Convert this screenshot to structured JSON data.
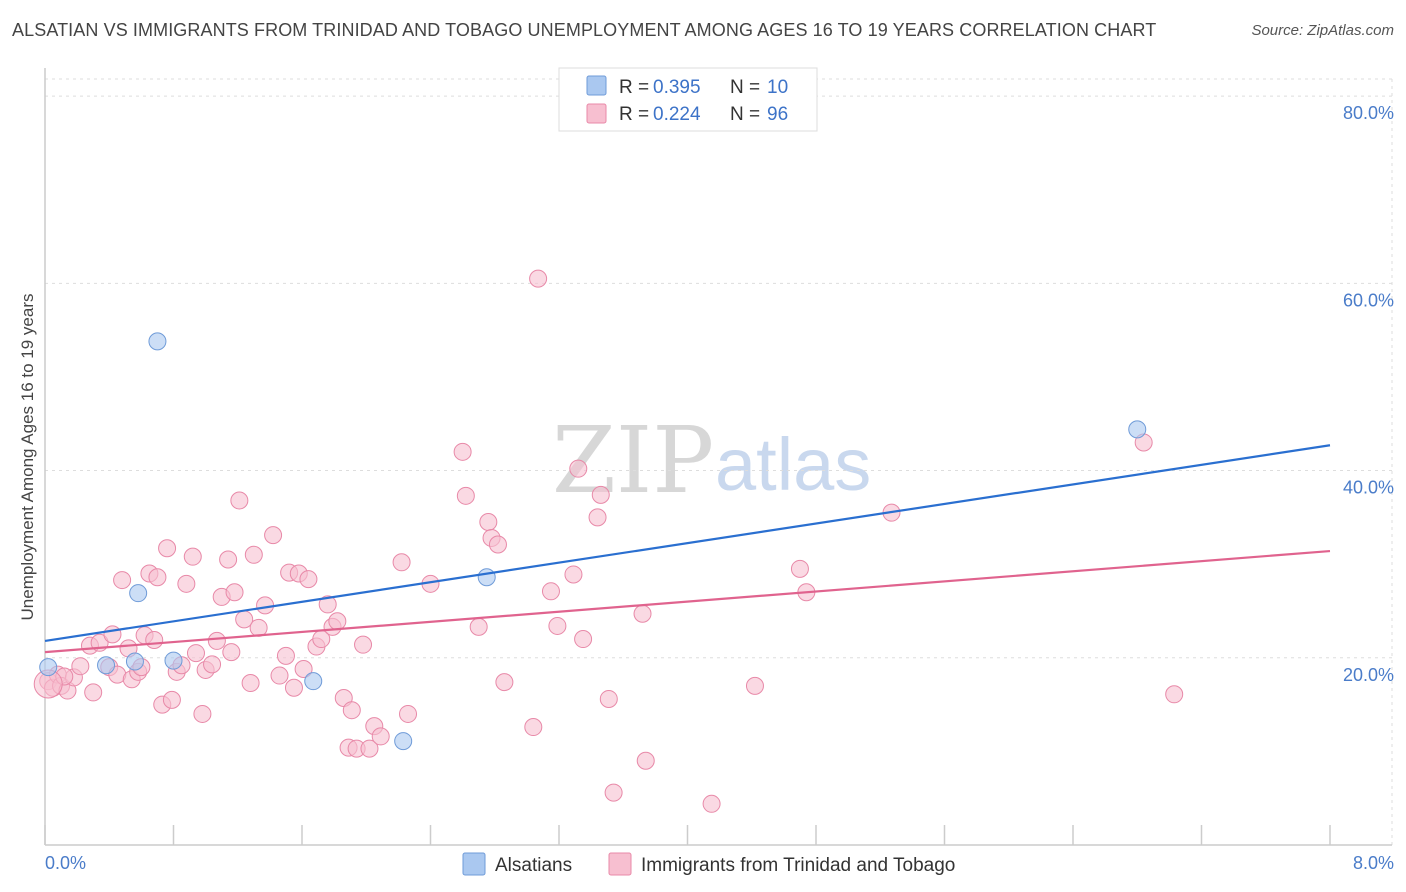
{
  "header": {
    "title": "ALSATIAN VS IMMIGRANTS FROM TRINIDAD AND TOBAGO UNEMPLOYMENT AMONG AGES 16 TO 19 YEARS CORRELATION CHART",
    "source": "Source: ZipAtlas.com"
  },
  "watermark": {
    "zip": "ZIP",
    "atlas": "atlas"
  },
  "legend": {
    "rows": [
      {
        "r_label": "R = ",
        "r_value": "0.395",
        "n_label": "N = ",
        "n_value": "10"
      },
      {
        "r_label": "R = ",
        "r_value": "0.224",
        "n_label": "N = ",
        "n_value": "96"
      }
    ]
  },
  "colors": {
    "blue_fill": "#aac8f0",
    "blue_stroke": "#6f9bd8",
    "blue_line": "#2a6fd0",
    "pink_fill": "#f7bfd0",
    "pink_stroke": "#e889a8",
    "pink_line": "#e0638e",
    "grid": "#dddddd",
    "axis_tick": "#4a7cc9"
  },
  "chart_data": {
    "type": "scatter",
    "title": "ALSATIAN VS IMMIGRANTS FROM TRINIDAD AND TOBAGO UNEMPLOYMENT AMONG AGES 16 TO 19 YEARS CORRELATION CHART",
    "xlabel": "",
    "ylabel": "Unemployment Among Ages 16 to 19 years",
    "xlim": [
      0,
      8
    ],
    "ylim": [
      0,
      83
    ],
    "x_tick_labels": [
      {
        "value": 0,
        "label": "0.0%"
      },
      {
        "value": 8,
        "label": "8.0%"
      }
    ],
    "y_tick_labels": [
      {
        "value": 20,
        "label": "20.0%"
      },
      {
        "value": 40,
        "label": "40.0%"
      },
      {
        "value": 60,
        "label": "60.0%"
      },
      {
        "value": 80,
        "label": "80.0%"
      }
    ],
    "grid": "horizontal dashed",
    "legend_position": "top-center",
    "series": [
      {
        "name": "Alsatians",
        "color": "#aac8f0",
        "trend": {
          "x": [
            0,
            8
          ],
          "y": [
            21.8,
            42.7
          ]
        },
        "points": [
          {
            "x": 0.02,
            "y": 19.0
          },
          {
            "x": 0.38,
            "y": 19.2
          },
          {
            "x": 0.56,
            "y": 19.6
          },
          {
            "x": 0.58,
            "y": 26.9
          },
          {
            "x": 0.7,
            "y": 53.8
          },
          {
            "x": 0.8,
            "y": 19.7
          },
          {
            "x": 1.67,
            "y": 17.5
          },
          {
            "x": 2.23,
            "y": 11.1
          },
          {
            "x": 2.75,
            "y": 28.6
          },
          {
            "x": 6.8,
            "y": 44.4
          }
        ]
      },
      {
        "name": "Immigrants from Trinidad and Tobago",
        "color": "#f7bfd0",
        "trend": {
          "x": [
            0,
            8
          ],
          "y": [
            20.6,
            31.4
          ]
        },
        "points": [
          {
            "x": 0.02,
            "y": 17.5
          },
          {
            "x": 0.05,
            "y": 16.8
          },
          {
            "x": 0.08,
            "y": 18.2
          },
          {
            "x": 0.1,
            "y": 17.0
          },
          {
            "x": 0.14,
            "y": 16.5
          },
          {
            "x": 0.18,
            "y": 17.9
          },
          {
            "x": 0.22,
            "y": 19.1
          },
          {
            "x": 0.28,
            "y": 21.3
          },
          {
            "x": 0.3,
            "y": 16.3
          },
          {
            "x": 0.34,
            "y": 21.6
          },
          {
            "x": 0.4,
            "y": 19.0
          },
          {
            "x": 0.42,
            "y": 22.5
          },
          {
            "x": 0.45,
            "y": 18.2
          },
          {
            "x": 0.48,
            "y": 28.3
          },
          {
            "x": 0.52,
            "y": 21.0
          },
          {
            "x": 0.54,
            "y": 17.7
          },
          {
            "x": 0.58,
            "y": 18.5
          },
          {
            "x": 0.6,
            "y": 19.0
          },
          {
            "x": 0.62,
            "y": 22.4
          },
          {
            "x": 0.65,
            "y": 29.0
          },
          {
            "x": 0.68,
            "y": 21.9
          },
          {
            "x": 0.7,
            "y": 28.6
          },
          {
            "x": 0.73,
            "y": 15.0
          },
          {
            "x": 0.76,
            "y": 31.7
          },
          {
            "x": 0.79,
            "y": 15.5
          },
          {
            "x": 0.82,
            "y": 18.5
          },
          {
            "x": 0.85,
            "y": 19.2
          },
          {
            "x": 0.88,
            "y": 27.9
          },
          {
            "x": 0.92,
            "y": 30.8
          },
          {
            "x": 0.94,
            "y": 20.5
          },
          {
            "x": 0.98,
            "y": 14.0
          },
          {
            "x": 1.0,
            "y": 18.7
          },
          {
            "x": 1.04,
            "y": 19.3
          },
          {
            "x": 1.07,
            "y": 21.8
          },
          {
            "x": 1.1,
            "y": 26.5
          },
          {
            "x": 1.14,
            "y": 30.5
          },
          {
            "x": 1.16,
            "y": 20.6
          },
          {
            "x": 1.18,
            "y": 27.0
          },
          {
            "x": 1.21,
            "y": 36.8
          },
          {
            "x": 1.24,
            "y": 24.1
          },
          {
            "x": 1.28,
            "y": 17.3
          },
          {
            "x": 1.3,
            "y": 31.0
          },
          {
            "x": 1.33,
            "y": 23.2
          },
          {
            "x": 1.37,
            "y": 25.6
          },
          {
            "x": 1.42,
            "y": 33.1
          },
          {
            "x": 1.46,
            "y": 18.1
          },
          {
            "x": 1.5,
            "y": 20.2
          },
          {
            "x": 1.52,
            "y": 29.1
          },
          {
            "x": 1.55,
            "y": 16.8
          },
          {
            "x": 1.58,
            "y": 29.0
          },
          {
            "x": 1.61,
            "y": 18.8
          },
          {
            "x": 1.64,
            "y": 28.4
          },
          {
            "x": 1.69,
            "y": 21.2
          },
          {
            "x": 1.72,
            "y": 22.0
          },
          {
            "x": 1.76,
            "y": 25.7
          },
          {
            "x": 1.79,
            "y": 23.3
          },
          {
            "x": 1.82,
            "y": 23.9
          },
          {
            "x": 1.86,
            "y": 15.7
          },
          {
            "x": 1.89,
            "y": 10.4
          },
          {
            "x": 1.91,
            "y": 14.4
          },
          {
            "x": 1.94,
            "y": 10.3
          },
          {
            "x": 1.98,
            "y": 21.4
          },
          {
            "x": 2.02,
            "y": 10.3
          },
          {
            "x": 2.05,
            "y": 12.7
          },
          {
            "x": 2.09,
            "y": 11.6
          },
          {
            "x": 2.22,
            "y": 30.2
          },
          {
            "x": 2.26,
            "y": 14.0
          },
          {
            "x": 2.4,
            "y": 27.9
          },
          {
            "x": 2.6,
            "y": 42.0
          },
          {
            "x": 2.62,
            "y": 37.3
          },
          {
            "x": 2.7,
            "y": 23.3
          },
          {
            "x": 2.76,
            "y": 34.5
          },
          {
            "x": 2.78,
            "y": 32.8
          },
          {
            "x": 2.82,
            "y": 32.1
          },
          {
            "x": 2.86,
            "y": 17.4
          },
          {
            "x": 3.04,
            "y": 12.6
          },
          {
            "x": 3.07,
            "y": 60.5
          },
          {
            "x": 3.15,
            "y": 27.1
          },
          {
            "x": 3.19,
            "y": 23.4
          },
          {
            "x": 3.29,
            "y": 28.9
          },
          {
            "x": 3.32,
            "y": 40.2
          },
          {
            "x": 3.35,
            "y": 22.0
          },
          {
            "x": 3.44,
            "y": 35.0
          },
          {
            "x": 3.46,
            "y": 37.4
          },
          {
            "x": 3.51,
            "y": 15.6
          },
          {
            "x": 3.54,
            "y": 5.6
          },
          {
            "x": 3.72,
            "y": 24.7
          },
          {
            "x": 3.74,
            "y": 9.0
          },
          {
            "x": 4.15,
            "y": 4.4
          },
          {
            "x": 4.42,
            "y": 17.0
          },
          {
            "x": 4.7,
            "y": 29.5
          },
          {
            "x": 4.74,
            "y": 27.0
          },
          {
            "x": 5.27,
            "y": 35.5
          },
          {
            "x": 6.84,
            "y": 43.0
          },
          {
            "x": 7.03,
            "y": 16.1
          },
          {
            "x": 0.12,
            "y": 18.0
          }
        ]
      }
    ]
  }
}
